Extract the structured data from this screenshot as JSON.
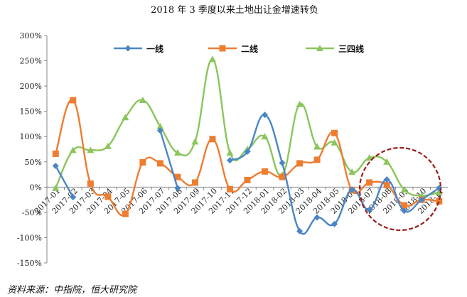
{
  "chart_data": {
    "type": "line",
    "title": "2018 年 3 季度以来土地出让金增速转负",
    "categories": [
      "2017-01",
      "2017-02",
      "2017-03",
      "2017-04",
      "2017-05",
      "2017-06",
      "2017-07",
      "2017-08",
      "2017-09",
      "2017-10",
      "2017-11",
      "2017-12",
      "2018-01",
      "2018-02",
      "2018-03",
      "2018-04",
      "2018-05",
      "2018-06",
      "2018-07",
      "2018-08",
      "2018-09",
      "2018-10",
      "2018-11"
    ],
    "ylim": [
      -150,
      300
    ],
    "yticks": [
      -150,
      -100,
      -50,
      0,
      50,
      100,
      150,
      200,
      250,
      300
    ],
    "ytick_labels": [
      "-150%",
      "-100%",
      "-50%",
      "0%",
      "50%",
      "100%",
      "150%",
      "200%",
      "250%",
      "300%"
    ],
    "legend_position": "top",
    "grid": false,
    "series": [
      {
        "name": "一线",
        "color": "#4a86c5",
        "marker": "diamond",
        "values": [
          42,
          -20,
          null,
          null,
          null,
          null,
          112,
          -2,
          null,
          null,
          53,
          70,
          143,
          48,
          -87,
          -60,
          -73,
          -5,
          -45,
          15,
          -47,
          -25,
          -2
        ]
      },
      {
        "name": "二线",
        "color": "#ed7d31",
        "marker": "square",
        "values": [
          66,
          172,
          7,
          -19,
          -53,
          49,
          47,
          20,
          9,
          95,
          -4,
          14,
          31,
          20,
          47,
          54,
          107,
          -6,
          9,
          4,
          -36,
          -25,
          -28
        ]
      },
      {
        "name": "三四线",
        "color": "#8ac65b",
        "marker": "triangle",
        "values": [
          -2,
          73,
          73,
          81,
          138,
          172,
          120,
          68,
          90,
          253,
          68,
          75,
          100,
          24,
          164,
          80,
          88,
          30,
          58,
          50,
          -5,
          -17,
          -10
        ]
      }
    ]
  },
  "source": "资料来源：中指院，恒大研究院",
  "highlight_color": "#9b1c1c"
}
